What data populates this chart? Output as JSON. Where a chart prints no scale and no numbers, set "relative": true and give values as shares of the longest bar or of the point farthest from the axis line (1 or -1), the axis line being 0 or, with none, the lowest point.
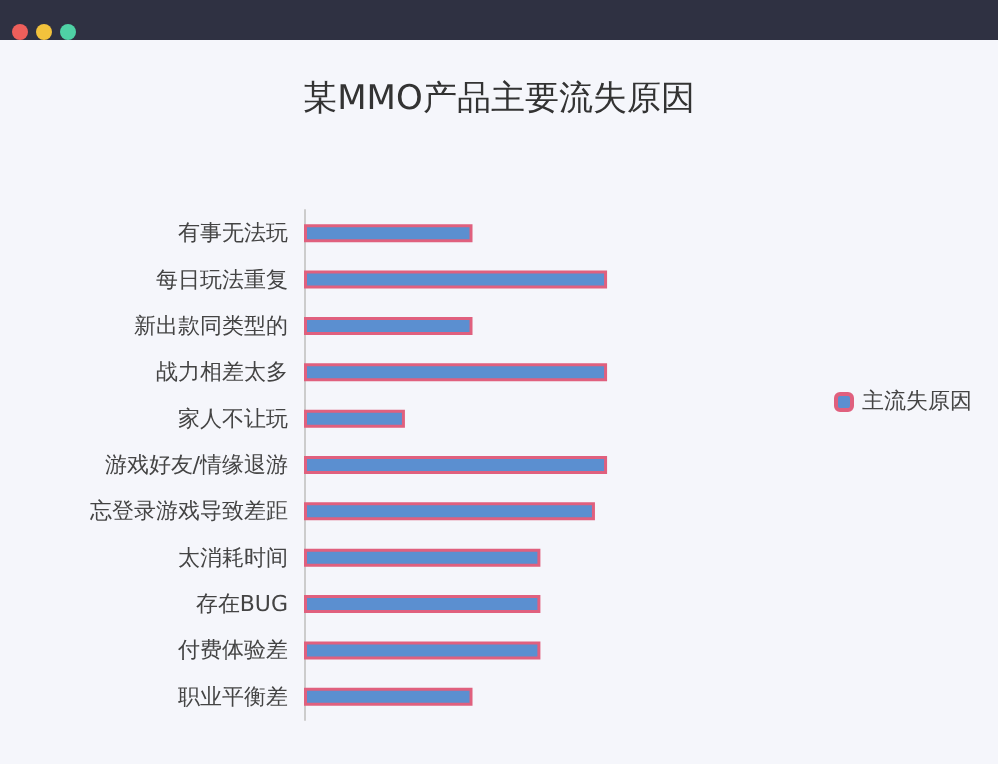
{
  "chart_data": {
    "type": "bar",
    "orientation": "horizontal",
    "relative": true,
    "title": "某MMO产品主要流失原因",
    "categories": [
      "有事无法玩",
      "每日玩法重复",
      "新出款同类型的",
      "战力相差太多",
      "家人不让玩",
      "游戏好友/情缘退游",
      "忘登录游戏导致差距",
      "太消耗时间",
      "存在BUG",
      "付费体验差",
      "职业平衡差"
    ],
    "series": [
      {
        "name": "主流失原因",
        "color": "#5b8fd0",
        "values": [
          0.556,
          1,
          0.556,
          1,
          0.333,
          1,
          0.96,
          0.78,
          0.78,
          0.78,
          0.556
        ]
      }
    ],
    "legend": "right"
  }
}
